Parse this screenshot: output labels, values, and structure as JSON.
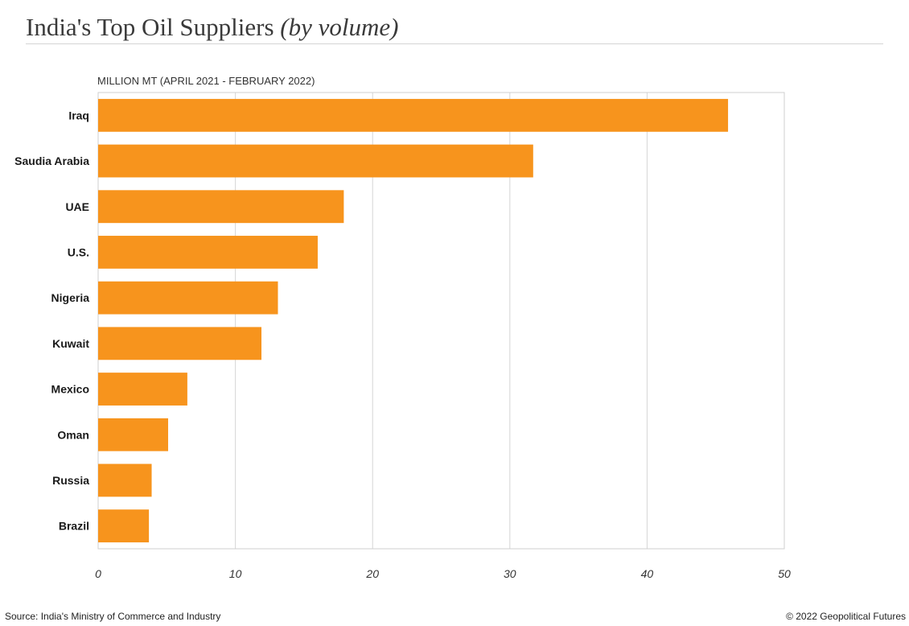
{
  "header": {
    "title": "India's Top Oil Suppliers",
    "subtitle": "(by volume)"
  },
  "chart_data": {
    "type": "bar",
    "orientation": "horizontal",
    "unit_label": "MILLION MT (APRIL 2021 - FEBRUARY 2022)",
    "categories": [
      "Iraq",
      "Saudia Arabia",
      "UAE",
      "U.S.",
      "Nigeria",
      "Kuwait",
      "Mexico",
      "Oman",
      "Russia",
      "Brazil"
    ],
    "values": [
      45.9,
      31.7,
      17.9,
      16.0,
      13.1,
      11.9,
      6.5,
      5.1,
      3.9,
      3.7
    ],
    "xlim": [
      0,
      50
    ],
    "xticks": [
      "0",
      "10",
      "20",
      "30",
      "40",
      "50"
    ],
    "grid": true,
    "bar_color": "#f7941d"
  },
  "footer": {
    "source": "Source: India's Ministry of Commerce and Industry",
    "credit": "© 2022 Geopolitical Futures"
  }
}
